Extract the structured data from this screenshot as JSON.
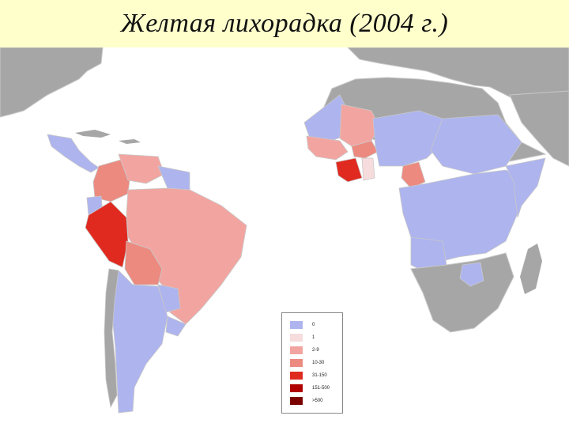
{
  "title": "Желтая лихорадка (2004 г.)",
  "colors": {
    "water": "#ffffff",
    "land_gray": "#a6a6a6",
    "border": "#c8c8c8",
    "class_0": "#aeb4ee",
    "class_1": "#f6dcdc",
    "class_2": "#f2a5a0",
    "class_3": "#ec8a80",
    "class_4": "#e02a20",
    "class_5": "#b00000",
    "class_6": "#7a0000"
  },
  "legend": {
    "items": [
      {
        "label": "0",
        "color": "#aeb4ee"
      },
      {
        "label": "1",
        "color": "#f6dcdc"
      },
      {
        "label": "2-9",
        "color": "#f2a5a0"
      },
      {
        "label": "10-30",
        "color": "#ec8a80"
      },
      {
        "label": "31-150",
        "color": "#e02a20"
      },
      {
        "label": "151-500",
        "color": "#b00000"
      },
      {
        "label": ">500",
        "color": "#7a0000"
      }
    ]
  }
}
